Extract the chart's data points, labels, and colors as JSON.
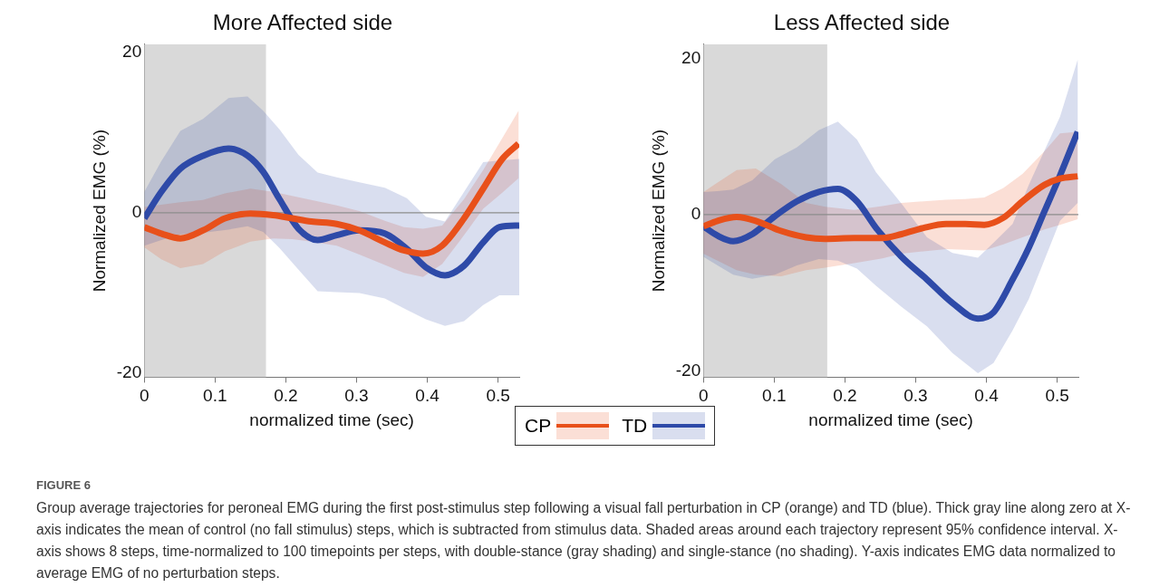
{
  "chart_data": [
    {
      "type": "line",
      "title": "More Affected side",
      "xlabel": "normalized time (sec)",
      "ylabel": "Normalized EMG (%)",
      "xlim": [
        0,
        0.53
      ],
      "xticks": [
        0,
        0.1,
        0.2,
        0.3,
        0.4,
        0.5
      ],
      "ylim": [
        -20.5,
        21
      ],
      "yticks": [
        -20,
        0,
        20
      ],
      "legend": "bottom",
      "bands": [
        {
          "axis": "x",
          "from": 0,
          "to": 0.172,
          "color": "#d9d9d9"
        }
      ],
      "ref_lines": [
        {
          "axis": "y",
          "value": 0,
          "color": "#8c8c8c"
        }
      ],
      "series": [
        {
          "name": "CP",
          "color": "#e8501a",
          "x": [
            0,
            0.024,
            0.051,
            0.083,
            0.114,
            0.15,
            0.182,
            0.209,
            0.236,
            0.272,
            0.304,
            0.34,
            0.367,
            0.394,
            0.421,
            0.452,
            0.479,
            0.506,
            0.529
          ],
          "values": [
            -1.8,
            -2.6,
            -3.2,
            -2.2,
            -0.7,
            -0.1,
            -0.3,
            -0.7,
            -1.1,
            -1.4,
            -2.2,
            -3.7,
            -4.7,
            -5.1,
            -4.1,
            -0.7,
            3.0,
            6.7,
            8.6
          ],
          "upper": [
            0.7,
            1.0,
            1.3,
            1.6,
            2.4,
            3.0,
            2.6,
            2.1,
            1.6,
            0.9,
            0.2,
            -1.0,
            -1.8,
            -2.0,
            -1.6,
            1.7,
            5.3,
            9.3,
            12.7
          ],
          "lower": [
            -4.3,
            -5.8,
            -6.9,
            -6.4,
            -4.8,
            -3.6,
            -3.2,
            -3.3,
            -3.6,
            -4.1,
            -5.2,
            -6.5,
            -7.5,
            -8.0,
            -6.4,
            -2.8,
            0.5,
            2.5,
            4.3
          ]
        },
        {
          "name": "TD",
          "color": "#2e4aa8",
          "x": [
            0,
            0.024,
            0.051,
            0.083,
            0.119,
            0.146,
            0.168,
            0.191,
            0.218,
            0.245,
            0.272,
            0.304,
            0.34,
            0.371,
            0.398,
            0.425,
            0.452,
            0.479,
            0.502,
            0.53
          ],
          "values": [
            -0.7,
            2.6,
            5.5,
            7.1,
            8.0,
            7.1,
            5.1,
            1.7,
            -2.0,
            -3.4,
            -2.8,
            -2.2,
            -2.6,
            -4.5,
            -6.8,
            -7.8,
            -6.6,
            -3.7,
            -1.8,
            -1.6
          ],
          "upper": [
            2.6,
            6.4,
            10.2,
            11.7,
            14.3,
            14.5,
            12.7,
            10.4,
            7.2,
            5.0,
            4.4,
            3.8,
            3.1,
            1.8,
            -0.5,
            -1.1,
            2.6,
            6.3,
            6.5,
            6.7
          ],
          "lower": [
            -4.1,
            -3.4,
            -2.7,
            -2.5,
            -2.1,
            -1.7,
            -2.4,
            -4.4,
            -7.1,
            -9.8,
            -9.9,
            -10.0,
            -10.7,
            -12.1,
            -13.3,
            -14.1,
            -13.5,
            -11.5,
            -10.3,
            -10.3
          ]
        }
      ]
    },
    {
      "type": "line",
      "title": "Less Affected side",
      "xlabel": "normalized time (sec)",
      "ylabel": "Normalized EMG (%)",
      "xlim": [
        0,
        0.53
      ],
      "xticks": [
        0,
        0.1,
        0.2,
        0.3,
        0.4,
        0.5
      ],
      "ylim": [
        -20.8,
        21.8
      ],
      "yticks": [
        -20,
        0,
        20
      ],
      "legend": "bottom",
      "bands": [
        {
          "axis": "x",
          "from": 0,
          "to": 0.175,
          "color": "#d9d9d9"
        }
      ],
      "ref_lines": [
        {
          "axis": "y",
          "value": 0,
          "color": "#8c8c8c"
        }
      ],
      "annotations": [
        "FIGURE 6",
        "Group average trajectories for peroneal EMG during the first post-stimulus step following a visual fall perturbation in CP (orange) and TD (blue). Thick gray line along zero at X-axis indicates the mean of control (no fall stimulus) steps, which is subtracted from stimulus data. Shaded areas around each trajectory represent 95% confidence interval. X-axis shows 8 steps, time-normalized to 100 timepoints per steps, with double-stance (gray shading) and single-stance (no shading). Y-axis indicates EMG data normalized to average EMG of no perturbation steps."
      ],
      "series": [
        {
          "name": "CP",
          "color": "#e8501a",
          "x": [
            0,
            0.02,
            0.047,
            0.074,
            0.11,
            0.145,
            0.172,
            0.213,
            0.253,
            0.28,
            0.311,
            0.343,
            0.37,
            0.397,
            0.424,
            0.451,
            0.482,
            0.504,
            0.529
          ],
          "values": [
            -1.5,
            -0.8,
            -0.3,
            -0.8,
            -2.1,
            -2.9,
            -3.1,
            -3.0,
            -3.0,
            -2.5,
            -1.7,
            -1.2,
            -1.2,
            -1.3,
            -0.4,
            1.7,
            3.8,
            4.6,
            4.9
          ],
          "upper": [
            2.9,
            4.1,
            5.7,
            5.9,
            3.9,
            1.5,
            1.0,
            0.6,
            1.1,
            1.5,
            1.7,
            1.9,
            2.0,
            2.2,
            3.4,
            5.2,
            8.1,
            10.4,
            10.6
          ],
          "lower": [
            -5.0,
            -5.9,
            -7.1,
            -7.7,
            -7.9,
            -7.1,
            -6.8,
            -6.2,
            -5.6,
            -5.0,
            -4.7,
            -4.4,
            -4.5,
            -4.6,
            -3.8,
            -2.9,
            -1.9,
            -1.3,
            -0.6
          ]
        },
        {
          "name": "TD",
          "color": "#2e4aa8",
          "x": [
            0,
            0.02,
            0.042,
            0.069,
            0.101,
            0.132,
            0.163,
            0.19,
            0.217,
            0.244,
            0.28,
            0.316,
            0.352,
            0.388,
            0.41,
            0.437,
            0.46,
            0.482,
            0.504,
            0.529
          ],
          "values": [
            -1.5,
            -2.7,
            -3.4,
            -2.5,
            -0.2,
            1.7,
            2.9,
            3.3,
            1.7,
            -1.7,
            -5.4,
            -8.3,
            -11.3,
            -13.3,
            -12.5,
            -8.3,
            -4.2,
            0.4,
            5.0,
            10.6
          ],
          "upper": [
            2.9,
            3.0,
            3.2,
            4.4,
            7.1,
            8.6,
            10.8,
            11.9,
            9.6,
            5.4,
            1.4,
            -2.9,
            -4.9,
            -5.5,
            -3.6,
            -1.2,
            3.8,
            8.2,
            12.5,
            19.8
          ],
          "lower": [
            -5.4,
            -6.5,
            -7.7,
            -8.2,
            -7.7,
            -6.5,
            -5.7,
            -5.9,
            -6.9,
            -9.1,
            -11.8,
            -14.3,
            -17.7,
            -20.3,
            -19.0,
            -14.8,
            -10.8,
            -5.8,
            -0.8,
            1.5
          ]
        }
      ]
    }
  ]
}
